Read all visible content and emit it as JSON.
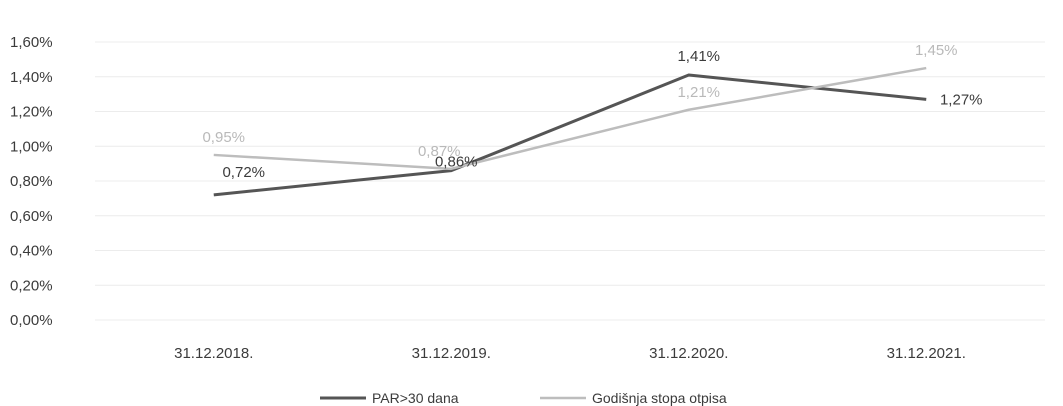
{
  "chart_data": {
    "type": "line",
    "categories": [
      "31.12.2018.",
      "31.12.2019.",
      "31.12.2020.",
      "31.12.2021."
    ],
    "series": [
      {
        "name": "PAR>30 dana",
        "values": [
          0.72,
          0.86,
          1.41,
          1.27
        ],
        "labels": [
          "0,72%",
          "0,86%",
          "1,41%",
          "1,27%"
        ],
        "color": "#555555"
      },
      {
        "name": "Godišnja stopa otpisa",
        "values": [
          0.95,
          0.87,
          1.21,
          1.45
        ],
        "labels": [
          "0,95%",
          "0,87%",
          "1,21%",
          "1,45%"
        ],
        "color": "#bdbdbd"
      }
    ],
    "y_ticks": [
      "0,00%",
      "0,20%",
      "0,40%",
      "0,60%",
      "0,80%",
      "1,00%",
      "1,20%",
      "1,40%",
      "1,60%"
    ],
    "ylim": [
      0,
      1.6
    ],
    "ylabel_format": "percent",
    "grid": true,
    "legend_position": "bottom"
  }
}
